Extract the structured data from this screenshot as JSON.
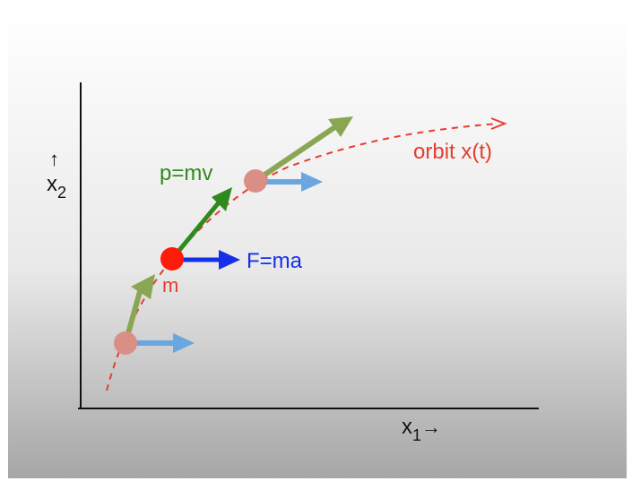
{
  "diagram": {
    "axes": {
      "x_label": "x",
      "x_subscript": "1",
      "x_arrow": "→",
      "y_label": "x",
      "y_subscript": "2",
      "y_arrow": "↑"
    },
    "labels": {
      "orbit": "orbit x(t)",
      "momentum": "p=mv",
      "force": "F=ma",
      "mass": "m"
    },
    "colors": {
      "orbit": "#e53d2d",
      "momentum_current": "#2f8a1e",
      "momentum_faded": "#8aa653",
      "force_current": "#1530e8",
      "force_faded": "#6aa6e0",
      "mass_current": "#ff1a0a",
      "mass_faded": "#d98f86",
      "axis": "#111111"
    }
  }
}
